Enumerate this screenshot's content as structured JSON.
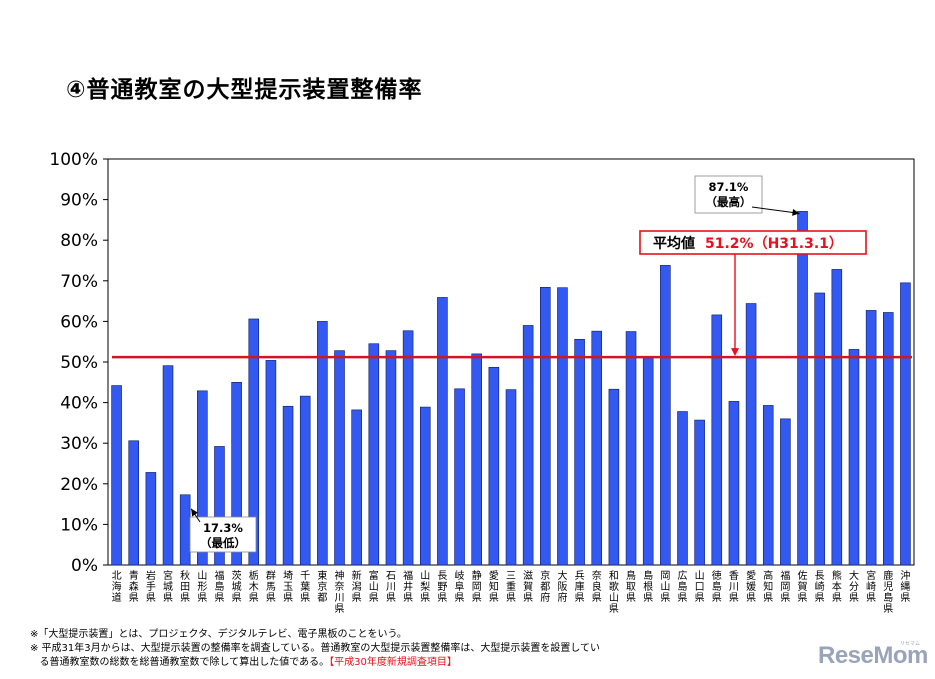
{
  "title": "④普通教室の大型提示装置整備率",
  "colors": {
    "bar": "#3359f0",
    "bar_edge": "#0a1a66",
    "average_line": "#cf1526",
    "average_box": "#e8101c"
  },
  "chart_data": {
    "type": "bar",
    "title": "④普通教室の大型提示装置整備率",
    "ylim": [
      0,
      100
    ],
    "y_ticks": [
      0,
      10,
      20,
      30,
      40,
      50,
      60,
      70,
      80,
      90,
      100
    ],
    "y_tick_labels": [
      "0%",
      "10%",
      "20%",
      "30%",
      "40%",
      "50%",
      "60%",
      "70%",
      "80%",
      "90%",
      "100%"
    ],
    "grid": false,
    "categories": [
      "北海道",
      "青森県",
      "岩手県",
      "宮城県",
      "秋田県",
      "山形県",
      "福島県",
      "茨城県",
      "栃木県",
      "群馬県",
      "埼玉県",
      "千葉県",
      "東京都",
      "神奈川県",
      "新潟県",
      "富山県",
      "石川県",
      "福井県",
      "山梨県",
      "長野県",
      "岐阜県",
      "静岡県",
      "愛知県",
      "三重県",
      "滋賀県",
      "京都府",
      "大阪府",
      "兵庫県",
      "奈良県",
      "和歌山県",
      "鳥取県",
      "島根県",
      "岡山県",
      "広島県",
      "山口県",
      "徳島県",
      "香川県",
      "愛媛県",
      "高知県",
      "福岡県",
      "佐賀県",
      "長崎県",
      "熊本県",
      "大分県",
      "宮崎県",
      "鹿児島県",
      "沖縄県"
    ],
    "values": [
      44.2,
      30.6,
      22.8,
      49.1,
      17.3,
      42.9,
      29.2,
      45.0,
      60.6,
      50.4,
      39.1,
      41.6,
      60.0,
      52.8,
      38.2,
      54.5,
      52.8,
      57.7,
      38.9,
      65.9,
      43.4,
      52.0,
      48.7,
      43.2,
      59.0,
      68.4,
      68.3,
      55.6,
      57.6,
      43.3,
      57.5,
      51.3,
      73.8,
      37.8,
      35.7,
      61.6,
      40.3,
      64.4,
      39.3,
      36.0,
      87.1,
      67.0,
      72.8,
      53.1,
      62.7,
      62.2,
      69.5
    ],
    "average": {
      "value": 51.2,
      "label_prefix": "平均値",
      "label_value": "51.2%（H31.3.1）"
    },
    "annotations": [
      {
        "category": "佐賀県",
        "line1": "87.1%",
        "line2": "（最高）"
      },
      {
        "category": "秋田県",
        "line1": "17.3%",
        "line2": "（最低）"
      }
    ]
  },
  "notes": {
    "line1": "※「大型提示装置」とは、プロジェクタ、デジタルテレビ、電子黒板のことをいう。",
    "line2": "※ 平成31年3月からは、大型提示装置の整備率を調査している。普通教室の大型提示装置整備率は、大型提示装置を設置してい",
    "line3a": "る普通教室数の総数を総普通教室数で除して算出した値である。",
    "line3b": "【平成30年度新規調査項目】"
  },
  "brand": {
    "name": "ReseMom",
    "sub": "リセマム"
  }
}
